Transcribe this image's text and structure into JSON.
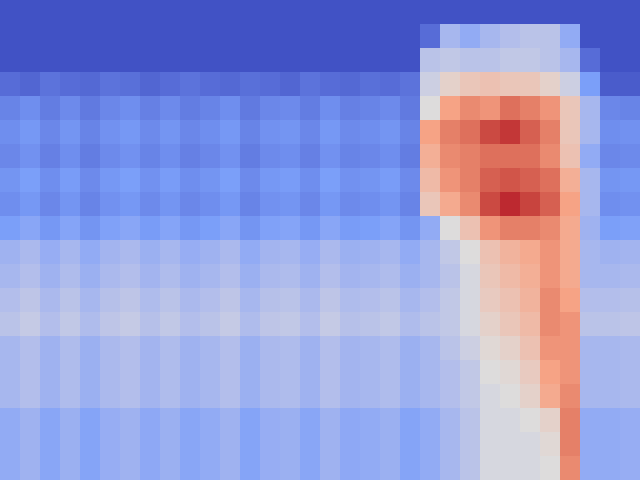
{
  "chart_data": {
    "type": "heatmap",
    "tick_labels": false,
    "zlim": [
      0,
      1
    ],
    "cells": [
      [
        0.02,
        0.02,
        0.02,
        0.02,
        0.02,
        0.02,
        0.02,
        0.02,
        0.02,
        0.02,
        0.02,
        0.02,
        0.02,
        0.02,
        0.02,
        0.02,
        0.02,
        0.02,
        0.02,
        0.02,
        0.02,
        0.02,
        0.02,
        0.02,
        0.02,
        0.02,
        0.02,
        0.02,
        0.02,
        0.02,
        0.02,
        0.02
      ],
      [
        0.02,
        0.02,
        0.02,
        0.02,
        0.02,
        0.02,
        0.02,
        0.02,
        0.02,
        0.02,
        0.02,
        0.02,
        0.02,
        0.02,
        0.02,
        0.02,
        0.02,
        0.02,
        0.02,
        0.02,
        0.02,
        0.1,
        0.35,
        0.3,
        0.35,
        0.38,
        0.4,
        0.4,
        0.3,
        0.02,
        0.02,
        0.02
      ],
      [
        0.02,
        0.02,
        0.02,
        0.02,
        0.02,
        0.02,
        0.02,
        0.02,
        0.02,
        0.02,
        0.02,
        0.02,
        0.02,
        0.02,
        0.02,
        0.02,
        0.02,
        0.02,
        0.02,
        0.02,
        0.02,
        0.4,
        0.42,
        0.4,
        0.4,
        0.42,
        0.42,
        0.4,
        0.35,
        0.1,
        0.02,
        0.02
      ],
      [
        0.1,
        0.08,
        0.12,
        0.1,
        0.09,
        0.12,
        0.11,
        0.08,
        0.1,
        0.12,
        0.1,
        0.09,
        0.11,
        0.1,
        0.08,
        0.12,
        0.1,
        0.09,
        0.11,
        0.1,
        0.12,
        0.45,
        0.55,
        0.6,
        0.62,
        0.6,
        0.6,
        0.55,
        0.45,
        0.25,
        0.05,
        0.05
      ],
      [
        0.17,
        0.2,
        0.15,
        0.19,
        0.14,
        0.18,
        0.2,
        0.16,
        0.19,
        0.15,
        0.17,
        0.2,
        0.14,
        0.18,
        0.19,
        0.15,
        0.2,
        0.16,
        0.17,
        0.19,
        0.14,
        0.5,
        0.75,
        0.8,
        0.78,
        0.85,
        0.82,
        0.78,
        0.6,
        0.35,
        0.18,
        0.17
      ],
      [
        0.2,
        0.23,
        0.18,
        0.22,
        0.17,
        0.21,
        0.23,
        0.19,
        0.22,
        0.18,
        0.2,
        0.23,
        0.17,
        0.21,
        0.22,
        0.18,
        0.23,
        0.19,
        0.2,
        0.22,
        0.17,
        0.75,
        0.82,
        0.85,
        0.92,
        0.95,
        0.88,
        0.82,
        0.6,
        0.35,
        0.2,
        0.21
      ],
      [
        0.18,
        0.21,
        0.16,
        0.2,
        0.15,
        0.19,
        0.21,
        0.17,
        0.2,
        0.16,
        0.18,
        0.21,
        0.15,
        0.19,
        0.2,
        0.16,
        0.21,
        0.17,
        0.18,
        0.2,
        0.15,
        0.7,
        0.8,
        0.82,
        0.85,
        0.85,
        0.85,
        0.8,
        0.62,
        0.3,
        0.18,
        0.19
      ],
      [
        0.22,
        0.25,
        0.2,
        0.24,
        0.19,
        0.23,
        0.25,
        0.21,
        0.24,
        0.2,
        0.22,
        0.25,
        0.19,
        0.23,
        0.24,
        0.2,
        0.25,
        0.21,
        0.22,
        0.24,
        0.19,
        0.65,
        0.78,
        0.82,
        0.88,
        0.9,
        0.88,
        0.85,
        0.7,
        0.35,
        0.22,
        0.23
      ],
      [
        0.2,
        0.23,
        0.18,
        0.22,
        0.17,
        0.21,
        0.23,
        0.19,
        0.22,
        0.18,
        0.2,
        0.23,
        0.17,
        0.21,
        0.22,
        0.18,
        0.23,
        0.19,
        0.2,
        0.22,
        0.17,
        0.6,
        0.72,
        0.8,
        0.92,
        0.97,
        0.93,
        0.88,
        0.75,
        0.35,
        0.2,
        0.21
      ],
      [
        0.25,
        0.28,
        0.23,
        0.27,
        0.22,
        0.26,
        0.28,
        0.24,
        0.27,
        0.23,
        0.25,
        0.28,
        0.22,
        0.26,
        0.27,
        0.23,
        0.28,
        0.24,
        0.25,
        0.27,
        0.22,
        0.3,
        0.5,
        0.62,
        0.78,
        0.82,
        0.82,
        0.8,
        0.72,
        0.33,
        0.25,
        0.26
      ],
      [
        0.33,
        0.36,
        0.31,
        0.35,
        0.3,
        0.34,
        0.36,
        0.32,
        0.35,
        0.31,
        0.33,
        0.36,
        0.3,
        0.34,
        0.35,
        0.31,
        0.36,
        0.32,
        0.33,
        0.35,
        0.3,
        0.35,
        0.42,
        0.5,
        0.62,
        0.68,
        0.72,
        0.78,
        0.72,
        0.35,
        0.33,
        0.34
      ],
      [
        0.35,
        0.38,
        0.33,
        0.37,
        0.32,
        0.36,
        0.38,
        0.34,
        0.37,
        0.33,
        0.35,
        0.38,
        0.32,
        0.36,
        0.37,
        0.33,
        0.38,
        0.34,
        0.35,
        0.37,
        0.32,
        0.35,
        0.4,
        0.48,
        0.6,
        0.65,
        0.7,
        0.78,
        0.72,
        0.35,
        0.35,
        0.36
      ],
      [
        0.38,
        0.41,
        0.36,
        0.4,
        0.35,
        0.39,
        0.41,
        0.37,
        0.4,
        0.36,
        0.38,
        0.41,
        0.35,
        0.39,
        0.4,
        0.36,
        0.41,
        0.37,
        0.38,
        0.4,
        0.35,
        0.38,
        0.42,
        0.48,
        0.58,
        0.62,
        0.68,
        0.8,
        0.75,
        0.38,
        0.38,
        0.39
      ],
      [
        0.4,
        0.43,
        0.38,
        0.42,
        0.37,
        0.41,
        0.43,
        0.39,
        0.42,
        0.38,
        0.4,
        0.43,
        0.37,
        0.41,
        0.42,
        0.38,
        0.43,
        0.39,
        0.4,
        0.42,
        0.37,
        0.4,
        0.42,
        0.48,
        0.55,
        0.6,
        0.65,
        0.8,
        0.78,
        0.4,
        0.4,
        0.41
      ],
      [
        0.35,
        0.38,
        0.33,
        0.37,
        0.32,
        0.36,
        0.38,
        0.34,
        0.37,
        0.33,
        0.35,
        0.38,
        0.32,
        0.36,
        0.37,
        0.33,
        0.38,
        0.34,
        0.35,
        0.37,
        0.32,
        0.35,
        0.4,
        0.45,
        0.52,
        0.55,
        0.62,
        0.78,
        0.78,
        0.35,
        0.35,
        0.36
      ],
      [
        0.35,
        0.38,
        0.33,
        0.37,
        0.32,
        0.36,
        0.38,
        0.34,
        0.37,
        0.33,
        0.35,
        0.38,
        0.32,
        0.36,
        0.37,
        0.33,
        0.38,
        0.34,
        0.35,
        0.37,
        0.32,
        0.35,
        0.38,
        0.42,
        0.5,
        0.52,
        0.58,
        0.75,
        0.78,
        0.35,
        0.35,
        0.36
      ],
      [
        0.35,
        0.38,
        0.33,
        0.37,
        0.32,
        0.36,
        0.38,
        0.34,
        0.37,
        0.33,
        0.35,
        0.38,
        0.32,
        0.36,
        0.37,
        0.33,
        0.38,
        0.34,
        0.35,
        0.37,
        0.32,
        0.35,
        0.38,
        0.42,
        0.48,
        0.5,
        0.55,
        0.72,
        0.8,
        0.35,
        0.35,
        0.36
      ],
      [
        0.3,
        0.33,
        0.28,
        0.32,
        0.27,
        0.31,
        0.33,
        0.29,
        0.32,
        0.28,
        0.3,
        0.33,
        0.27,
        0.31,
        0.32,
        0.28,
        0.33,
        0.29,
        0.3,
        0.32,
        0.27,
        0.3,
        0.35,
        0.4,
        0.48,
        0.48,
        0.5,
        0.55,
        0.82,
        0.3,
        0.3,
        0.31
      ],
      [
        0.3,
        0.33,
        0.28,
        0.32,
        0.27,
        0.31,
        0.33,
        0.29,
        0.32,
        0.28,
        0.3,
        0.33,
        0.27,
        0.31,
        0.32,
        0.28,
        0.33,
        0.29,
        0.3,
        0.32,
        0.27,
        0.3,
        0.35,
        0.4,
        0.48,
        0.48,
        0.48,
        0.52,
        0.82,
        0.3,
        0.3,
        0.31
      ],
      [
        0.3,
        0.33,
        0.28,
        0.32,
        0.27,
        0.31,
        0.33,
        0.29,
        0.32,
        0.28,
        0.3,
        0.33,
        0.27,
        0.31,
        0.32,
        0.28,
        0.33,
        0.29,
        0.3,
        0.32,
        0.27,
        0.3,
        0.35,
        0.4,
        0.48,
        0.48,
        0.48,
        0.5,
        0.8,
        0.3,
        0.3,
        0.31
      ]
    ]
  }
}
